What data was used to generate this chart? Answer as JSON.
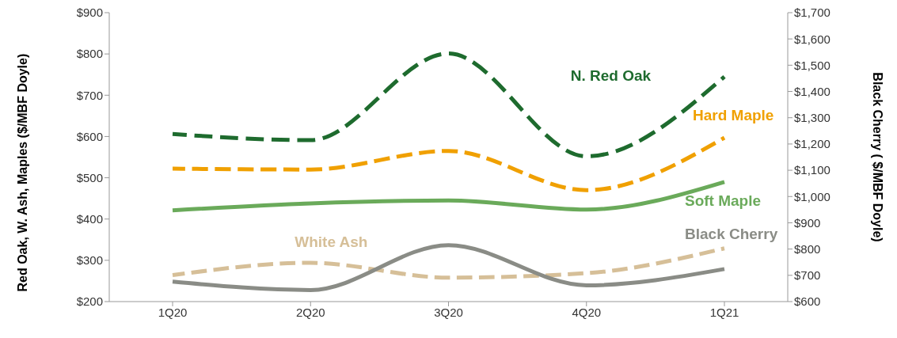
{
  "chart_data": {
    "type": "line",
    "categories": [
      "1Q20",
      "2Q20",
      "3Q20",
      "4Q20",
      "1Q21"
    ],
    "ylabel": "Red Oak, W. Ash, Maples ($/MBF Doyle)",
    "y2label": "Black Cherry ( $/MBF Doyle)",
    "ylim": [
      200,
      900
    ],
    "yticks": [
      {
        "value": 200,
        "label": "$200"
      },
      {
        "value": 300,
        "label": "$300"
      },
      {
        "value": 400,
        "label": "$400"
      },
      {
        "value": 500,
        "label": "$500"
      },
      {
        "value": 600,
        "label": "$600"
      },
      {
        "value": 700,
        "label": "$700"
      },
      {
        "value": 800,
        "label": "$800"
      },
      {
        "value": 900,
        "label": "$900"
      }
    ],
    "y2lim": [
      600,
      1700
    ],
    "y2ticks": [
      {
        "value": 600,
        "label": "$600"
      },
      {
        "value": 700,
        "label": "$700"
      },
      {
        "value": 800,
        "label": "$800"
      },
      {
        "value": 900,
        "label": "$900"
      },
      {
        "value": 1000,
        "label": "$1,000"
      },
      {
        "value": 1100,
        "label": "$1,100"
      },
      {
        "value": 1200,
        "label": "$1,200"
      },
      {
        "value": 1300,
        "label": "$1,300"
      },
      {
        "value": 1400,
        "label": "$1,400"
      },
      {
        "value": 1500,
        "label": "$1,500"
      },
      {
        "value": 1600,
        "label": "$1,600"
      },
      {
        "value": 1700,
        "label": "$1,700"
      }
    ],
    "marker": "none",
    "series": [
      {
        "name": "N. Red Oak",
        "color": "#1e6b2e",
        "line_style": "dashed",
        "values": [
          606,
          591,
          801,
          552,
          745
        ]
      },
      {
        "name": "Hard Maple",
        "color": "#f0a000",
        "line_style": "dashed",
        "values": [
          522,
          520,
          565,
          470,
          597
        ]
      },
      {
        "name": "Soft Maple",
        "color": "#6aaa5a",
        "line_style": "solid",
        "values": [
          421,
          438,
          445,
          423,
          490
        ]
      },
      {
        "name": "White Ash",
        "color": "#d6bf98",
        "line_style": "dashed",
        "values": [
          264,
          294,
          258,
          269,
          329
        ]
      },
      {
        "name": "Black Cherry",
        "color": "#8a8c86",
        "line_style": "solid",
        "axis": "y2",
        "values": [
          676,
          644,
          815,
          662,
          724
        ]
      }
    ]
  }
}
